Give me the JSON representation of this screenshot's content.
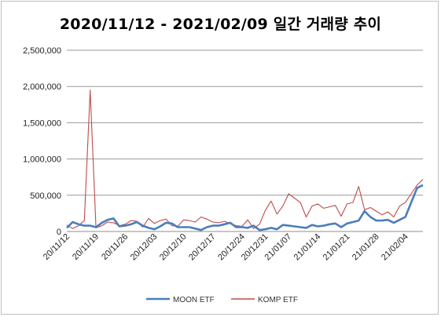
{
  "chart_data": {
    "type": "line",
    "title": "2020/11/12 - 2021/02/09 일간 거래량 추이",
    "xlabel": "",
    "ylabel": "",
    "ylim": [
      0,
      2500000
    ],
    "yticks": [
      0,
      500000,
      1000000,
      1500000,
      2000000,
      2500000
    ],
    "ytick_labels": [
      "0",
      "500,000",
      "1,000,000",
      "1,500,000",
      "2,000,000",
      "2,500,000"
    ],
    "grid": "horizontal",
    "legend_position": "bottom",
    "x": [
      "20/11/12",
      "20/11/13",
      "20/11/16",
      "20/11/17",
      "20/11/18",
      "20/11/19",
      "20/11/20",
      "20/11/23",
      "20/11/24",
      "20/11/25",
      "20/11/26",
      "20/11/27",
      "20/11/30",
      "20/12/01",
      "20/12/02",
      "20/12/03",
      "20/12/04",
      "20/12/07",
      "20/12/08",
      "20/12/09",
      "20/12/10",
      "20/12/11",
      "20/12/14",
      "20/12/15",
      "20/12/16",
      "20/12/17",
      "20/12/18",
      "20/12/21",
      "20/12/22",
      "20/12/23",
      "20/12/24",
      "20/12/28",
      "20/12/29",
      "20/12/30",
      "20/12/31",
      "21/01/04",
      "21/01/05",
      "21/01/06",
      "21/01/07",
      "21/01/08",
      "21/01/11",
      "21/01/12",
      "21/01/13",
      "21/01/14",
      "21/01/15",
      "21/01/18",
      "21/01/19",
      "21/01/20",
      "21/01/21",
      "21/01/22",
      "21/01/25",
      "21/01/26",
      "21/01/27",
      "21/01/28",
      "21/01/29",
      "21/02/01",
      "21/02/02",
      "21/02/03",
      "21/02/04",
      "21/02/05",
      "21/02/08",
      "21/02/09"
    ],
    "xtick_labels": [
      "20/11/12",
      "20/11/19",
      "20/11/26",
      "20/12/03",
      "20/12/10",
      "20/12/17",
      "20/12/24",
      "20/12/31",
      "21/01/07",
      "21/01/14",
      "21/01/21",
      "21/01/28",
      "21/02/04"
    ],
    "xtick_indices": [
      0,
      5,
      10,
      15,
      20,
      25,
      30,
      34,
      38,
      43,
      48,
      53,
      58
    ],
    "series": [
      {
        "name": "MOON ETF",
        "color": "#4a7ebb",
        "values": [
          50000,
          130000,
          100000,
          80000,
          80000,
          60000,
          120000,
          160000,
          180000,
          70000,
          80000,
          100000,
          130000,
          80000,
          50000,
          30000,
          70000,
          120000,
          110000,
          60000,
          60000,
          60000,
          40000,
          20000,
          60000,
          80000,
          80000,
          100000,
          120000,
          60000,
          60000,
          50000,
          80000,
          20000,
          30000,
          50000,
          30000,
          90000,
          80000,
          70000,
          60000,
          50000,
          90000,
          70000,
          80000,
          100000,
          110000,
          60000,
          110000,
          130000,
          150000,
          280000,
          200000,
          150000,
          150000,
          160000,
          120000,
          160000,
          200000,
          400000,
          600000,
          640000
        ]
      },
      {
        "name": "KOMP ETF",
        "color": "#be4b48",
        "values": [
          90000,
          40000,
          80000,
          150000,
          1950000,
          50000,
          80000,
          130000,
          120000,
          80000,
          100000,
          150000,
          140000,
          60000,
          180000,
          110000,
          150000,
          170000,
          80000,
          70000,
          160000,
          150000,
          130000,
          200000,
          170000,
          130000,
          120000,
          140000,
          110000,
          80000,
          70000,
          160000,
          40000,
          100000,
          290000,
          420000,
          240000,
          350000,
          520000,
          460000,
          400000,
          200000,
          350000,
          380000,
          320000,
          340000,
          360000,
          210000,
          380000,
          400000,
          620000,
          300000,
          330000,
          280000,
          230000,
          270000,
          200000,
          350000,
          400000,
          520000,
          640000,
          720000
        ]
      }
    ]
  }
}
